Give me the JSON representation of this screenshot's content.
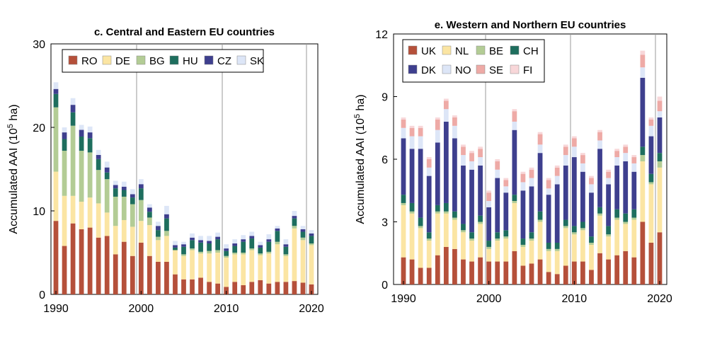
{
  "chart_data": [
    {
      "type": "bar",
      "stacked": true,
      "title": "c. Central and Eastern EU countries",
      "ylabel": "Accumulated AAI (10",
      "ylabel_sup": "5",
      "ylabel_tail": " ha)",
      "ylim": [
        0,
        30
      ],
      "yticks": [
        "0",
        "10",
        "20",
        "30"
      ],
      "xticks": [
        "1990",
        "2000",
        "2010",
        "2020"
      ],
      "legend_position": "top",
      "colors": {
        "RO": "#b5503a",
        "DE": "#fbe5a3",
        "BG": "#b3cc95",
        "HU": "#1e6e5e",
        "CZ": "#3e3f8e",
        "SK": "#dde6f7"
      },
      "categories": [
        1990,
        1991,
        1992,
        1993,
        1994,
        1995,
        1996,
        1997,
        1998,
        1999,
        2000,
        2001,
        2002,
        2003,
        2004,
        2005,
        2006,
        2007,
        2008,
        2009,
        2010,
        2011,
        2012,
        2013,
        2014,
        2015,
        2016,
        2017,
        2018,
        2019,
        2020
      ],
      "series": [
        {
          "name": "RO",
          "values": [
            8.8,
            5.8,
            8.5,
            7.8,
            8.0,
            6.8,
            7.0,
            4.8,
            6.3,
            4.6,
            6.2,
            4.6,
            3.9,
            3.9,
            2.4,
            1.8,
            1.8,
            2.0,
            1.5,
            1.3,
            0.9,
            1.5,
            1.1,
            1.5,
            1.7,
            1.3,
            1.5,
            1.5,
            1.6,
            1.4,
            1.2
          ]
        },
        {
          "name": "DE",
          "values": [
            5.9,
            6.0,
            3.3,
            3.3,
            3.6,
            4.1,
            2.8,
            3.4,
            2.6,
            3.5,
            2.6,
            3.7,
            2.6,
            3.1,
            2.9,
            2.8,
            3.5,
            2.9,
            3.4,
            3.7,
            3.5,
            3.3,
            3.7,
            3.8,
            3.0,
            3.6,
            4.5,
            3.1,
            6.3,
            5.1,
            4.7
          ]
        },
        {
          "name": "BG",
          "values": [
            7.7,
            5.4,
            8.4,
            6.1,
            5.4,
            4.0,
            4.0,
            3.5,
            2.8,
            2.7,
            2.5,
            0.9,
            0.4,
            0.6,
            0,
            0.2,
            0.2,
            0.2,
            0.3,
            0.3,
            0.2,
            0.2,
            0.2,
            0.2,
            0.2,
            0.2,
            0.3,
            0.2,
            0.3,
            0.3,
            0.2
          ]
        },
        {
          "name": "HU",
          "values": [
            1.6,
            1.4,
            1.6,
            1.7,
            1.7,
            1.3,
            0.8,
            1.0,
            0.8,
            0.8,
            1.4,
            0.7,
            0.8,
            1.5,
            0.3,
            0.9,
            1.0,
            1.1,
            0.9,
            1.3,
            0.6,
            0.8,
            1.3,
            1.2,
            0.7,
            1.2,
            1.3,
            0.9,
            0.9,
            0.7,
            0.9
          ]
        },
        {
          "name": "CZ",
          "values": [
            0.6,
            0.8,
            0.9,
            0.8,
            0.7,
            0.5,
            0.6,
            0.4,
            0.4,
            0.4,
            0.5,
            0.5,
            0.5,
            0.5,
            0.3,
            0.3,
            0.3,
            0.3,
            0.3,
            0.3,
            0.3,
            0.3,
            0.3,
            0.3,
            0.3,
            0.3,
            0.3,
            0.3,
            0.3,
            0.3,
            0.3
          ]
        },
        {
          "name": "SK",
          "values": [
            0.8,
            0.6,
            0.8,
            0.6,
            0.7,
            0.6,
            0.7,
            0.5,
            0.6,
            0.6,
            0.6,
            0.4,
            0.5,
            1.0,
            0.5,
            0.3,
            0.5,
            0.5,
            0.6,
            0.5,
            0.5,
            0.5,
            0.5,
            0.5,
            0.4,
            0.6,
            0.3,
            0.6,
            0.6,
            0.4,
            0.4
          ]
        }
      ]
    },
    {
      "type": "bar",
      "stacked": true,
      "title": "e. Western and Northern EU countries",
      "ylabel": "Accumulated AAI (10",
      "ylabel_sup": "5",
      "ylabel_tail": " ha)",
      "ylim": [
        0,
        12
      ],
      "yticks": [
        "0",
        "3",
        "6",
        "9",
        "12"
      ],
      "xticks": [
        "1990",
        "2000",
        "2010",
        "2020"
      ],
      "legend_position": "top",
      "colors": {
        "UK": "#b5503a",
        "NL": "#fbe5a3",
        "BE": "#b3cc95",
        "CH": "#1e6e5e",
        "DK": "#3e3f8e",
        "NO": "#dde6f7",
        "SE": "#eeaaa6",
        "FI": "#f8d7d9"
      },
      "categories": [
        1990,
        1991,
        1992,
        1993,
        1994,
        1995,
        1996,
        1997,
        1998,
        1999,
        2000,
        2001,
        2002,
        2003,
        2004,
        2005,
        2006,
        2007,
        2008,
        2009,
        2010,
        2011,
        2012,
        2013,
        2014,
        2015,
        2016,
        2017,
        2018,
        2019,
        2020
      ],
      "series": [
        {
          "name": "UK",
          "values": [
            1.3,
            1.2,
            0.8,
            0.8,
            1.4,
            1.8,
            1.7,
            1.2,
            1.1,
            1.3,
            1.1,
            1.1,
            1.1,
            1.6,
            0.9,
            1.0,
            1.2,
            0.6,
            0.5,
            0.9,
            1.1,
            1.1,
            0.7,
            1.5,
            1.2,
            1.4,
            1.6,
            1.3,
            3.0,
            2.0,
            2.5
          ]
        },
        {
          "name": "NL",
          "values": [
            2.5,
            2.2,
            1.9,
            1.3,
            2.0,
            1.6,
            1.4,
            1.3,
            1.0,
            1.6,
            0.6,
            1.0,
            1.1,
            2.3,
            0.9,
            1.1,
            1.8,
            1.0,
            1.1,
            1.8,
            1.3,
            1.5,
            1.2,
            1.8,
            1.1,
            1.7,
            1.3,
            1.8,
            2.9,
            2.8,
            3.1
          ]
        },
        {
          "name": "BE",
          "values": [
            0.1,
            0.1,
            0.1,
            0.1,
            0.1,
            0.1,
            0.1,
            0.1,
            0.1,
            0.1,
            0.1,
            0.1,
            0.1,
            0.1,
            0.1,
            0.1,
            0.1,
            0.1,
            0.1,
            0.1,
            0.1,
            0.1,
            0.1,
            0.1,
            0.1,
            0.1,
            0.1,
            0.1,
            0.3,
            0.1,
            0.3
          ]
        },
        {
          "name": "CH",
          "values": [
            0.4,
            0.4,
            0.4,
            0.3,
            0.3,
            0.4,
            0.3,
            0.3,
            0.3,
            0.3,
            0.3,
            0.3,
            0.3,
            0.3,
            0.3,
            0.3,
            0.4,
            0.3,
            0.3,
            0.3,
            0.3,
            0.3,
            0.3,
            0.3,
            0.4,
            0.4,
            0.4,
            0.4,
            0.4,
            0.4,
            0.4
          ]
        },
        {
          "name": "DK",
          "values": [
            2.7,
            2.6,
            3.3,
            2.7,
            3.0,
            3.9,
            3.5,
            2.8,
            3.0,
            2.4,
            1.6,
            2.6,
            1.8,
            3.1,
            2.3,
            2.2,
            2.8,
            2.3,
            2.8,
            2.6,
            3.3,
            2.4,
            2.1,
            2.8,
            2.0,
            2.1,
            2.5,
            1.8,
            3.3,
            1.8,
            1.7
          ]
        },
        {
          "name": "NO",
          "values": [
            0.5,
            0.6,
            0.6,
            0.4,
            0.6,
            0.6,
            0.6,
            0.5,
            0.4,
            0.4,
            0.3,
            0.4,
            0.3,
            0.4,
            0.4,
            0.4,
            0.4,
            0.3,
            0.4,
            0.5,
            0.5,
            0.4,
            0.4,
            0.4,
            0.3,
            0.4,
            0.4,
            0.4,
            0.5,
            0.5,
            0.3
          ]
        },
        {
          "name": "SE",
          "values": [
            0.4,
            0.4,
            0.4,
            0.4,
            0.5,
            0.4,
            0.4,
            0.4,
            0.4,
            0.4,
            0.4,
            0.4,
            0.3,
            0.5,
            0.4,
            0.4,
            0.5,
            0.4,
            0.4,
            0.4,
            0.4,
            0.4,
            0.3,
            0.4,
            0.3,
            0.3,
            0.3,
            0.3,
            0.6,
            0.3,
            0.5
          ]
        },
        {
          "name": "FI",
          "values": [
            0.1,
            0.1,
            0.1,
            0.1,
            0.1,
            0.1,
            0.1,
            0.1,
            0.1,
            0.1,
            0.1,
            0.1,
            0.1,
            0.1,
            0.1,
            0.1,
            0.1,
            0.1,
            0.1,
            0.1,
            0.1,
            0.1,
            0.1,
            0.1,
            0.1,
            0.1,
            0.1,
            0.1,
            0.2,
            0.1,
            0.2
          ]
        }
      ]
    }
  ]
}
